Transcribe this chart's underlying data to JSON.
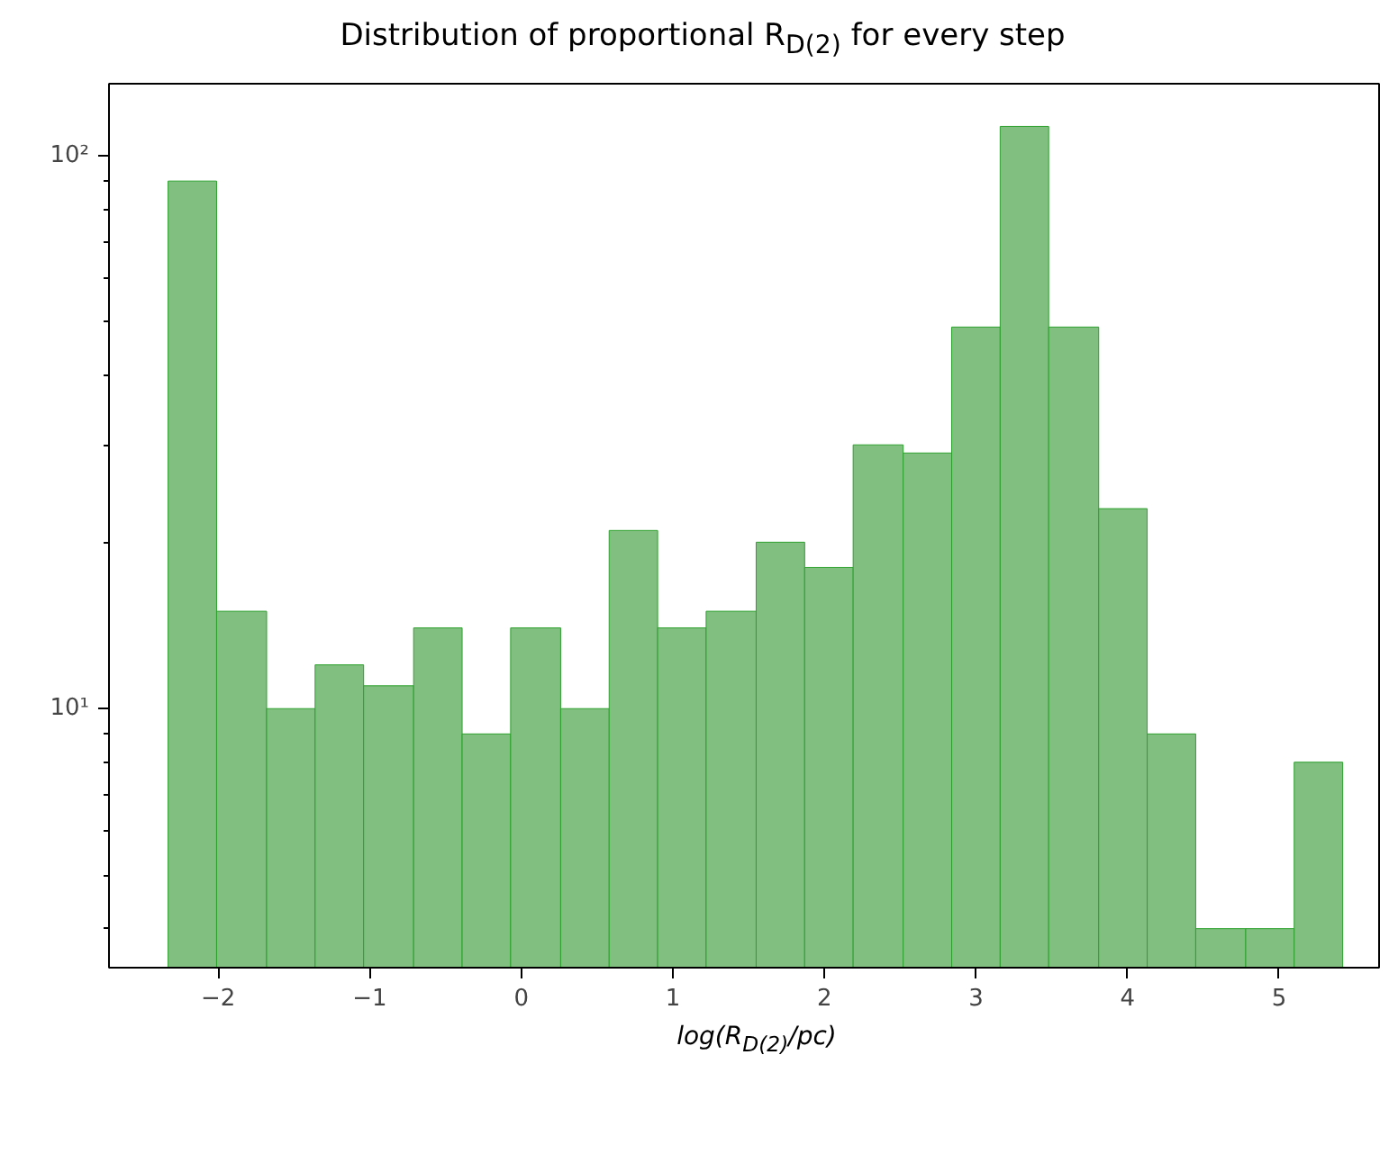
{
  "chart_data": {
    "type": "histogram",
    "title": "Distribution of proportional R$_{D(2)}$ for every step",
    "xlabel": "log(R$_{D(2)}$/pc)",
    "bins": [
      -2.33,
      -2.01,
      -1.68,
      -1.36,
      -1.04,
      -0.71,
      -0.39,
      -0.07,
      0.26,
      0.58,
      0.9,
      1.22,
      1.55,
      1.87,
      2.19,
      2.52,
      2.84,
      3.16,
      3.48,
      3.81,
      4.13,
      4.45,
      4.78,
      5.1,
      5.42
    ],
    "values": [
      90,
      15,
      10,
      12,
      11,
      14,
      9,
      14,
      10,
      21,
      14,
      15,
      20,
      18,
      30,
      29,
      49,
      113,
      49,
      23,
      9,
      4,
      4,
      8
    ],
    "color": "#81bf81",
    "log": "y",
    "grid": false,
    "xlim": [
      -2.72,
      5.66
    ],
    "xticks": [
      {
        "value": -2,
        "label": "−2"
      },
      {
        "value": -1,
        "label": "−1"
      },
      0,
      1,
      2,
      3,
      4,
      5
    ],
    "ylim": [
      3.4,
      135
    ],
    "yticks": [
      {
        "value": 10,
        "label": "10¹"
      },
      {
        "value": 100,
        "label": "10²"
      }
    ]
  }
}
